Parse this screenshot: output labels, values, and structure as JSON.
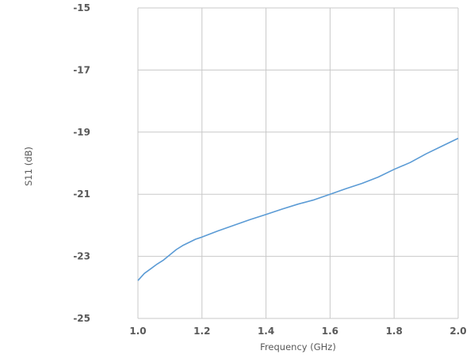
{
  "chart_data": {
    "type": "line",
    "title": "",
    "xlabel": "Frequency (GHz)",
    "ylabel": "S11 (dB)",
    "xlim": [
      1.0,
      2.0
    ],
    "ylim": [
      -25,
      -15
    ],
    "x_ticks": [
      1.0,
      1.2,
      1.4,
      1.6,
      1.8,
      2.0
    ],
    "x_tick_labels": [
      "1.0",
      "1.2",
      "1.4",
      "1.6",
      "1.8",
      "2.0"
    ],
    "y_ticks": [
      -15,
      -17,
      -19,
      -21,
      -23,
      -25
    ],
    "y_tick_labels": [
      "-15",
      "-17",
      "-19",
      "-21",
      "-23",
      "-25"
    ],
    "grid": true,
    "legend": "none",
    "series_color": "#5b9bd5",
    "series": [
      {
        "x": [
          1.0,
          1.02,
          1.04,
          1.06,
          1.08,
          1.1,
          1.12,
          1.14,
          1.16,
          1.18,
          1.2,
          1.25,
          1.3,
          1.35,
          1.4,
          1.45,
          1.5,
          1.55,
          1.6,
          1.65,
          1.7,
          1.75,
          1.8,
          1.85,
          1.9,
          1.95,
          2.0
        ],
        "y": [
          -23.78,
          -23.55,
          -23.4,
          -23.25,
          -23.12,
          -22.95,
          -22.78,
          -22.65,
          -22.55,
          -22.45,
          -22.38,
          -22.18,
          -22.0,
          -21.82,
          -21.65,
          -21.48,
          -21.32,
          -21.18,
          -21.0,
          -20.82,
          -20.65,
          -20.45,
          -20.2,
          -19.98,
          -19.7,
          -19.45,
          -19.2
        ]
      }
    ]
  }
}
